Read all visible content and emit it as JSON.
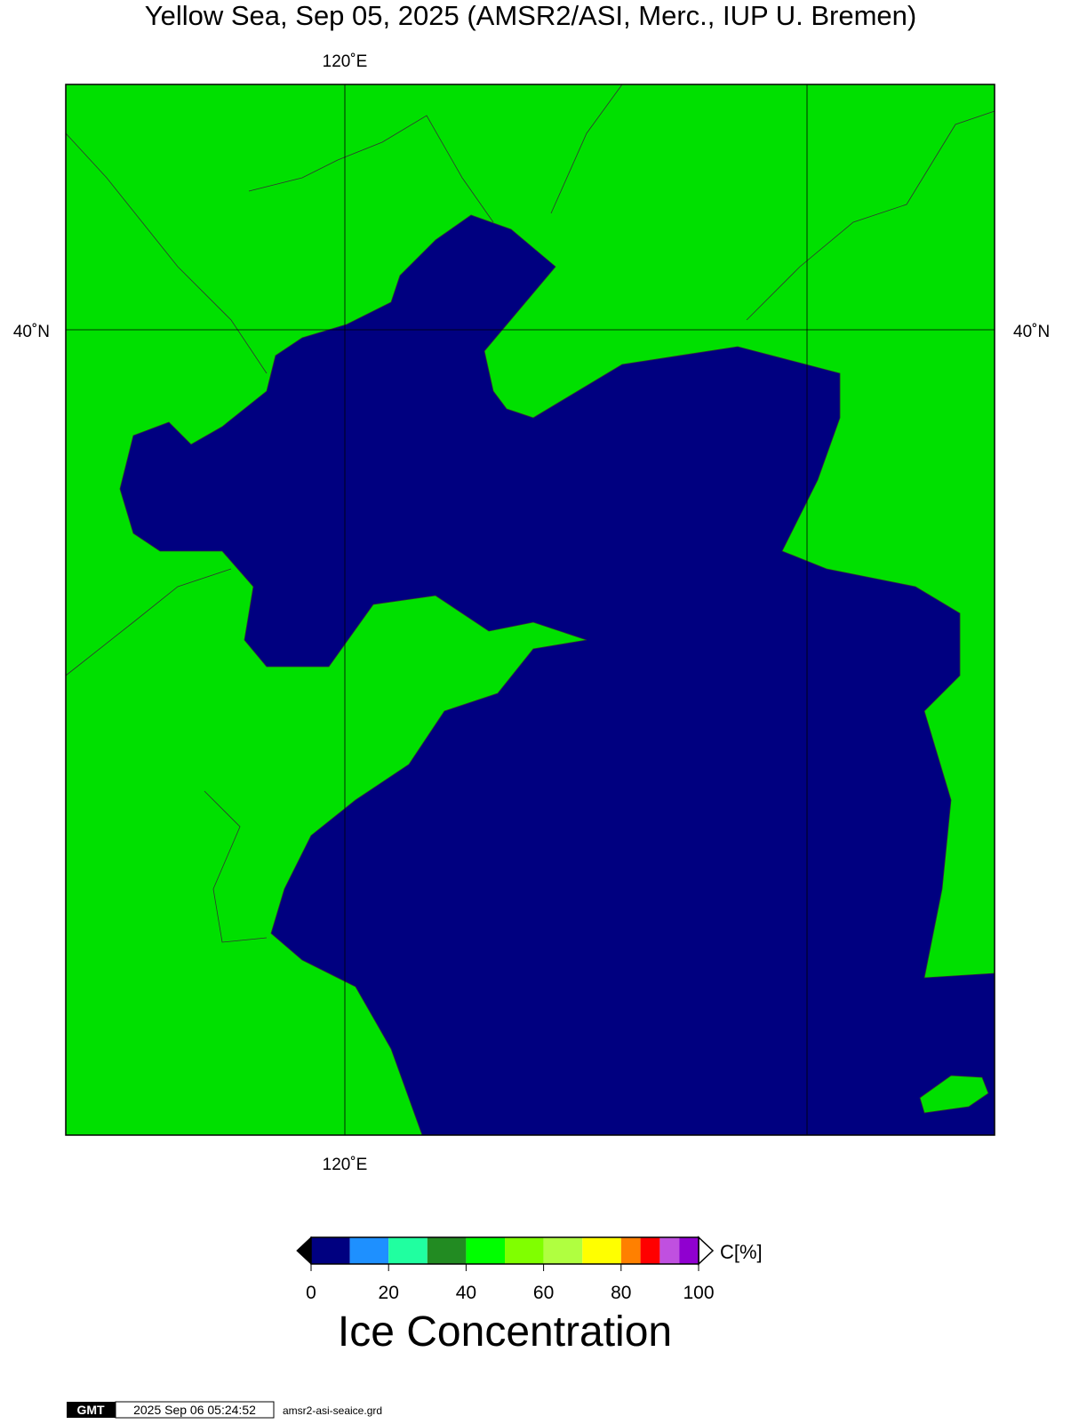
{
  "title": "Yellow Sea, Sep 05, 2025 (AMSR2/ASI, Merc., IUP U. Bremen)",
  "map": {
    "x_label_top": "120˚E",
    "x_label_bottom": "120˚E",
    "y_label_left": "40˚N",
    "y_label_right": "40˚N"
  },
  "colorbar": {
    "bins": [
      0,
      10,
      20,
      30,
      40,
      50,
      60,
      70,
      80,
      85,
      90,
      95,
      100
    ],
    "colors": [
      "#000080",
      "#1e90ff",
      "#20ffa0",
      "#228b22",
      "#00ff00",
      "#80ff00",
      "#b0ff40",
      "#ffff00",
      "#ff8000",
      "#ff0000",
      "#c050e0",
      "#9000d0"
    ],
    "ticks": [
      0,
      20,
      40,
      60,
      80,
      100
    ],
    "unit": "C[%]",
    "label": "Ice Concentration"
  },
  "footer": {
    "logo": "GMT",
    "timestamp": "2025 Sep 06 05:24:52",
    "file": "amsr2-asi-seaice.grd"
  }
}
